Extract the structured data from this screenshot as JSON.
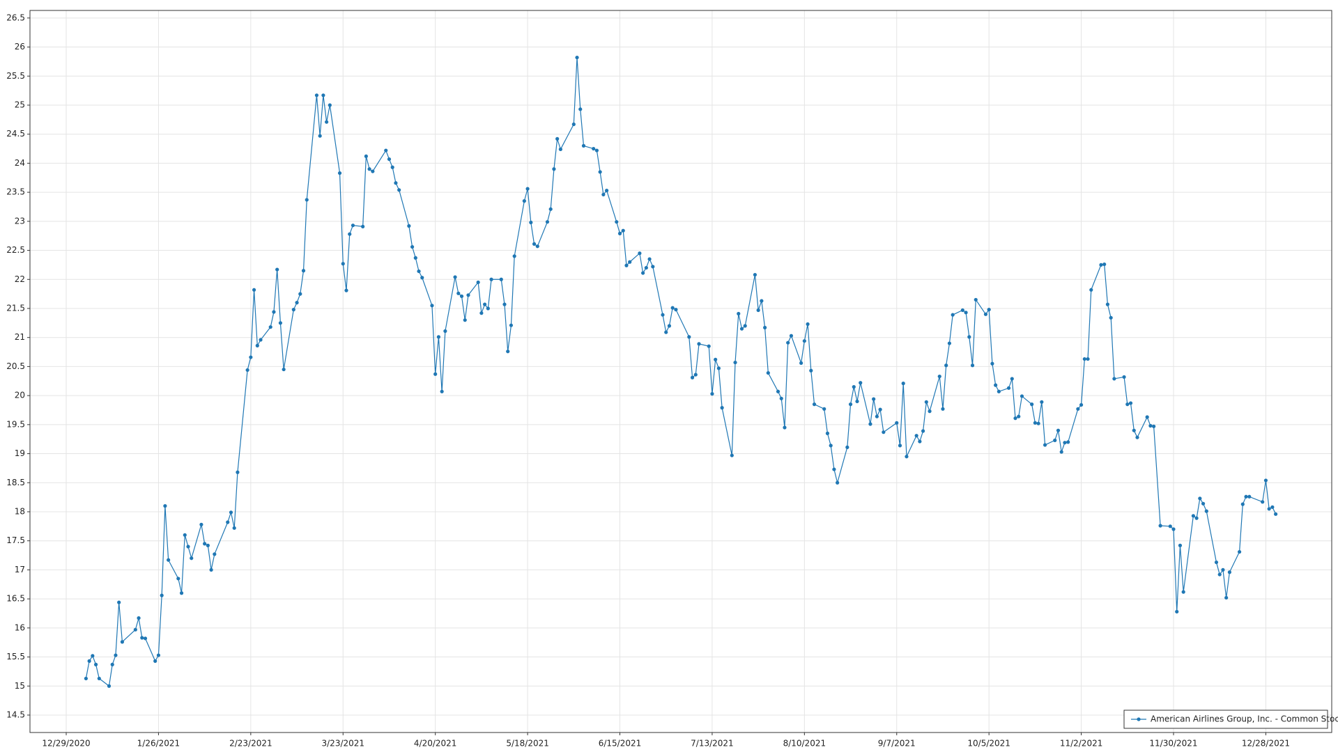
{
  "chart_data": {
    "type": "line",
    "series": [
      {
        "name": "American Airlines Group, Inc. - Common Stock",
        "color": "#1f77b4",
        "x": [
          "2021-01-04",
          "2021-01-05",
          "2021-01-06",
          "2021-01-07",
          "2021-01-08",
          "2021-01-11",
          "2021-01-12",
          "2021-01-13",
          "2021-01-14",
          "2021-01-15",
          "2021-01-19",
          "2021-01-20",
          "2021-01-21",
          "2021-01-22",
          "2021-01-25",
          "2021-01-26",
          "2021-01-27",
          "2021-01-28",
          "2021-01-29",
          "2021-02-01",
          "2021-02-02",
          "2021-02-03",
          "2021-02-04",
          "2021-02-05",
          "2021-02-08",
          "2021-02-09",
          "2021-02-10",
          "2021-02-11",
          "2021-02-12",
          "2021-02-16",
          "2021-02-17",
          "2021-02-18",
          "2021-02-19",
          "2021-02-22",
          "2021-02-23",
          "2021-02-24",
          "2021-02-25",
          "2021-02-26",
          "2021-03-01",
          "2021-03-02",
          "2021-03-03",
          "2021-03-04",
          "2021-03-05",
          "2021-03-08",
          "2021-03-09",
          "2021-03-10",
          "2021-03-11",
          "2021-03-12",
          "2021-03-15",
          "2021-03-16",
          "2021-03-17",
          "2021-03-18",
          "2021-03-19",
          "2021-03-22",
          "2021-03-23",
          "2021-03-24",
          "2021-03-25",
          "2021-03-26",
          "2021-03-29",
          "2021-03-30",
          "2021-03-31",
          "2021-04-01",
          "2021-04-05",
          "2021-04-06",
          "2021-04-07",
          "2021-04-08",
          "2021-04-09",
          "2021-04-12",
          "2021-04-13",
          "2021-04-14",
          "2021-04-15",
          "2021-04-16",
          "2021-04-19",
          "2021-04-20",
          "2021-04-21",
          "2021-04-22",
          "2021-04-23",
          "2021-04-26",
          "2021-04-27",
          "2021-04-28",
          "2021-04-29",
          "2021-04-30",
          "2021-05-03",
          "2021-05-04",
          "2021-05-05",
          "2021-05-06",
          "2021-05-07",
          "2021-05-10",
          "2021-05-11",
          "2021-05-12",
          "2021-05-13",
          "2021-05-14",
          "2021-05-17",
          "2021-05-18",
          "2021-05-19",
          "2021-05-20",
          "2021-05-21",
          "2021-05-24",
          "2021-05-25",
          "2021-05-26",
          "2021-05-27",
          "2021-05-28",
          "2021-06-01",
          "2021-06-02",
          "2021-06-03",
          "2021-06-04",
          "2021-06-07",
          "2021-06-08",
          "2021-06-09",
          "2021-06-10",
          "2021-06-11",
          "2021-06-14",
          "2021-06-15",
          "2021-06-16",
          "2021-06-17",
          "2021-06-18",
          "2021-06-21",
          "2021-06-22",
          "2021-06-23",
          "2021-06-24",
          "2021-06-25",
          "2021-06-28",
          "2021-06-29",
          "2021-06-30",
          "2021-07-01",
          "2021-07-02",
          "2021-07-06",
          "2021-07-07",
          "2021-07-08",
          "2021-07-09",
          "2021-07-12",
          "2021-07-13",
          "2021-07-14",
          "2021-07-15",
          "2021-07-16",
          "2021-07-19",
          "2021-07-20",
          "2021-07-21",
          "2021-07-22",
          "2021-07-23",
          "2021-07-26",
          "2021-07-27",
          "2021-07-28",
          "2021-07-29",
          "2021-07-30",
          "2021-08-02",
          "2021-08-03",
          "2021-08-04",
          "2021-08-05",
          "2021-08-06",
          "2021-08-09",
          "2021-08-10",
          "2021-08-11",
          "2021-08-12",
          "2021-08-13",
          "2021-08-16",
          "2021-08-17",
          "2021-08-18",
          "2021-08-19",
          "2021-08-20",
          "2021-08-23",
          "2021-08-24",
          "2021-08-25",
          "2021-08-26",
          "2021-08-27",
          "2021-08-30",
          "2021-08-31",
          "2021-09-01",
          "2021-09-02",
          "2021-09-03",
          "2021-09-07",
          "2021-09-08",
          "2021-09-09",
          "2021-09-10",
          "2021-09-13",
          "2021-09-14",
          "2021-09-15",
          "2021-09-16",
          "2021-09-17",
          "2021-09-20",
          "2021-09-21",
          "2021-09-22",
          "2021-09-23",
          "2021-09-24",
          "2021-09-27",
          "2021-09-28",
          "2021-09-29",
          "2021-09-30",
          "2021-10-01",
          "2021-10-04",
          "2021-10-05",
          "2021-10-06",
          "2021-10-07",
          "2021-10-08",
          "2021-10-11",
          "2021-10-12",
          "2021-10-13",
          "2021-10-14",
          "2021-10-15",
          "2021-10-18",
          "2021-10-19",
          "2021-10-20",
          "2021-10-21",
          "2021-10-22",
          "2021-10-25",
          "2021-10-26",
          "2021-10-27",
          "2021-10-28",
          "2021-10-29",
          "2021-11-01",
          "2021-11-02",
          "2021-11-03",
          "2021-11-04",
          "2021-11-05",
          "2021-11-08",
          "2021-11-09",
          "2021-11-10",
          "2021-11-11",
          "2021-11-12",
          "2021-11-15",
          "2021-11-16",
          "2021-11-17",
          "2021-11-18",
          "2021-11-19",
          "2021-11-22",
          "2021-11-23",
          "2021-11-24",
          "2021-11-26",
          "2021-11-29",
          "2021-11-30",
          "2021-12-01",
          "2021-12-02",
          "2021-12-03",
          "2021-12-06",
          "2021-12-07",
          "2021-12-08",
          "2021-12-09",
          "2021-12-10",
          "2021-12-13",
          "2021-12-14",
          "2021-12-15",
          "2021-12-16",
          "2021-12-17",
          "2021-12-20",
          "2021-12-21",
          "2021-12-22",
          "2021-12-23",
          "2021-12-27",
          "2021-12-28",
          "2021-12-29",
          "2021-12-30",
          "2021-12-31"
        ],
        "values": [
          15.13,
          15.43,
          15.52,
          15.37,
          15.13,
          15.0,
          15.37,
          15.53,
          16.44,
          15.76,
          15.97,
          16.17,
          15.83,
          15.82,
          15.43,
          15.53,
          16.56,
          18.1,
          17.17,
          16.85,
          16.6,
          17.6,
          17.4,
          17.2,
          17.78,
          17.45,
          17.42,
          17.0,
          17.27,
          17.82,
          17.99,
          17.72,
          18.68,
          20.44,
          20.66,
          21.82,
          20.86,
          20.96,
          21.18,
          21.44,
          22.17,
          21.25,
          20.45,
          21.48,
          21.6,
          21.75,
          22.15,
          23.37,
          25.17,
          24.47,
          25.17,
          24.71,
          25.0,
          23.83,
          22.27,
          21.81,
          22.78,
          22.93,
          22.91,
          24.12,
          23.9,
          23.86,
          24.22,
          24.07,
          23.93,
          23.66,
          23.54,
          22.92,
          22.56,
          22.37,
          22.14,
          22.03,
          21.55,
          20.37,
          21.01,
          20.07,
          21.11,
          22.04,
          21.76,
          21.71,
          21.3,
          21.73,
          21.95,
          21.42,
          21.57,
          21.5,
          22.0,
          22.0,
          21.57,
          20.76,
          21.21,
          22.4,
          23.35,
          23.56,
          22.98,
          22.61,
          22.57,
          22.99,
          23.21,
          23.9,
          24.42,
          24.24,
          24.67,
          25.82,
          24.93,
          24.3,
          24.25,
          24.22,
          23.85,
          23.46,
          23.53,
          22.99,
          22.79,
          22.84,
          22.24,
          22.3,
          22.45,
          22.11,
          22.2,
          22.35,
          22.22,
          21.39,
          21.09,
          21.2,
          21.51,
          21.48,
          21.01,
          20.31,
          20.36,
          20.89,
          20.85,
          20.03,
          20.62,
          20.47,
          19.79,
          18.97,
          20.57,
          21.41,
          21.15,
          21.2,
          22.08,
          21.47,
          21.63,
          21.17,
          20.39,
          20.07,
          19.95,
          19.45,
          20.91,
          21.03,
          20.56,
          20.94,
          21.23,
          20.43,
          19.85,
          19.77,
          19.35,
          19.14,
          18.73,
          18.5,
          19.11,
          19.85,
          20.15,
          19.9,
          20.22,
          19.51,
          19.94,
          19.64,
          19.76,
          19.37,
          19.53,
          19.14,
          20.21,
          18.95,
          19.31,
          19.21,
          19.39,
          19.89,
          19.73,
          20.33,
          19.77,
          20.52,
          20.9,
          21.39,
          21.47,
          21.43,
          21.01,
          20.52,
          21.65,
          21.4,
          21.48,
          20.55,
          20.18,
          20.07,
          20.13,
          20.29,
          19.61,
          19.64,
          19.99,
          19.85,
          19.53,
          19.52,
          19.89,
          19.15,
          19.23,
          19.4,
          19.03,
          19.19,
          19.2,
          19.77,
          19.84,
          20.63,
          20.63,
          21.82,
          22.25,
          22.26,
          21.57,
          21.34,
          20.29,
          20.32,
          19.85,
          19.87,
          19.4,
          19.28,
          19.63,
          19.48,
          19.47,
          17.76,
          17.75,
          17.7,
          16.28,
          17.42,
          16.62,
          17.93,
          17.89,
          18.23,
          18.14,
          18.01,
          17.13,
          16.92,
          17.0,
          16.52,
          16.96,
          17.31,
          18.13,
          18.26,
          18.26,
          18.17,
          18.54,
          18.05,
          18.08,
          17.96
        ]
      }
    ],
    "xlim": [
      "2020-12-18",
      "2022-01-17"
    ],
    "xticks": [
      {
        "value": "2020-12-29",
        "label": "12/29/2020"
      },
      {
        "value": "2021-01-26",
        "label": "1/26/2021"
      },
      {
        "value": "2021-02-23",
        "label": "2/23/2021"
      },
      {
        "value": "2021-03-23",
        "label": "3/23/2021"
      },
      {
        "value": "2021-04-20",
        "label": "4/20/2021"
      },
      {
        "value": "2021-05-18",
        "label": "5/18/2021"
      },
      {
        "value": "2021-06-15",
        "label": "6/15/2021"
      },
      {
        "value": "2021-07-13",
        "label": "7/13/2021"
      },
      {
        "value": "2021-08-10",
        "label": "8/10/2021"
      },
      {
        "value": "2021-09-07",
        "label": "9/7/2021"
      },
      {
        "value": "2021-10-05",
        "label": "10/5/2021"
      },
      {
        "value": "2021-11-02",
        "label": "11/2/2021"
      },
      {
        "value": "2021-11-30",
        "label": "11/30/2021"
      },
      {
        "value": "2021-12-28",
        "label": "12/28/2021"
      }
    ],
    "ylim": [
      14.2,
      26.63
    ],
    "yticks": [
      14.5,
      15,
      15.5,
      16,
      16.5,
      17,
      17.5,
      18,
      18.5,
      19,
      19.5,
      20,
      20.5,
      21,
      21.5,
      22,
      22.5,
      23,
      23.5,
      24,
      24.5,
      25,
      25.5,
      26,
      26.5
    ],
    "grid": true,
    "markers": true,
    "legend": "lower right"
  }
}
